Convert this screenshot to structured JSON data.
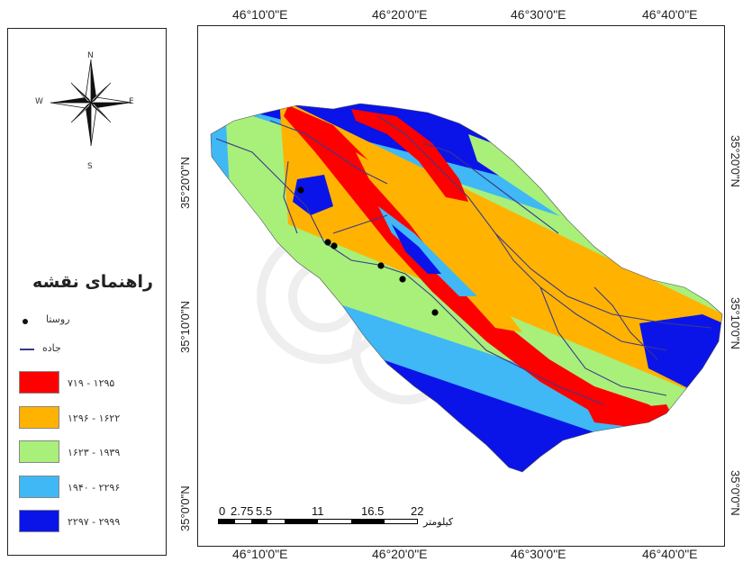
{
  "legend": {
    "title": "راهنمای نقشه",
    "village_label": "روستا",
    "road_label": "جاده",
    "classes": [
      {
        "label": "۷۱۹ - ۱۲۹۵",
        "color": "#ff0000"
      },
      {
        "label": "۱۲۹۶ - ۱۶۲۲",
        "color": "#ffb300"
      },
      {
        "label": "۱۶۲۳ - ۱۹۳۹",
        "color": "#a8f07a"
      },
      {
        "label": "۱۹۴۰ - ۲۲۹۶",
        "color": "#3fb8f5"
      },
      {
        "label": "۲۲۹۷ - ۲۹۹۹",
        "color": "#0a14e8"
      }
    ]
  },
  "compass": {
    "n": "N",
    "s": "S",
    "e": "E",
    "w": "W"
  },
  "longitude_ticks": [
    "46°10'0\"E",
    "46°20'0\"E",
    "46°30'0\"E",
    "46°40'0\"E"
  ],
  "latitude_ticks": [
    "35°20'0\"N",
    "35°10'0\"N",
    "35°0'0\"N"
  ],
  "scale_bar": {
    "labels": [
      "0",
      "2.75",
      "5.5",
      "11",
      "16.5",
      "22"
    ],
    "unit": "کیلومتر"
  },
  "colors": {
    "red": "#ff0000",
    "orange": "#ffb300",
    "green": "#a8f07a",
    "cyan": "#3fb8f5",
    "blue": "#0a14e8",
    "road": "#3a3a8a"
  }
}
